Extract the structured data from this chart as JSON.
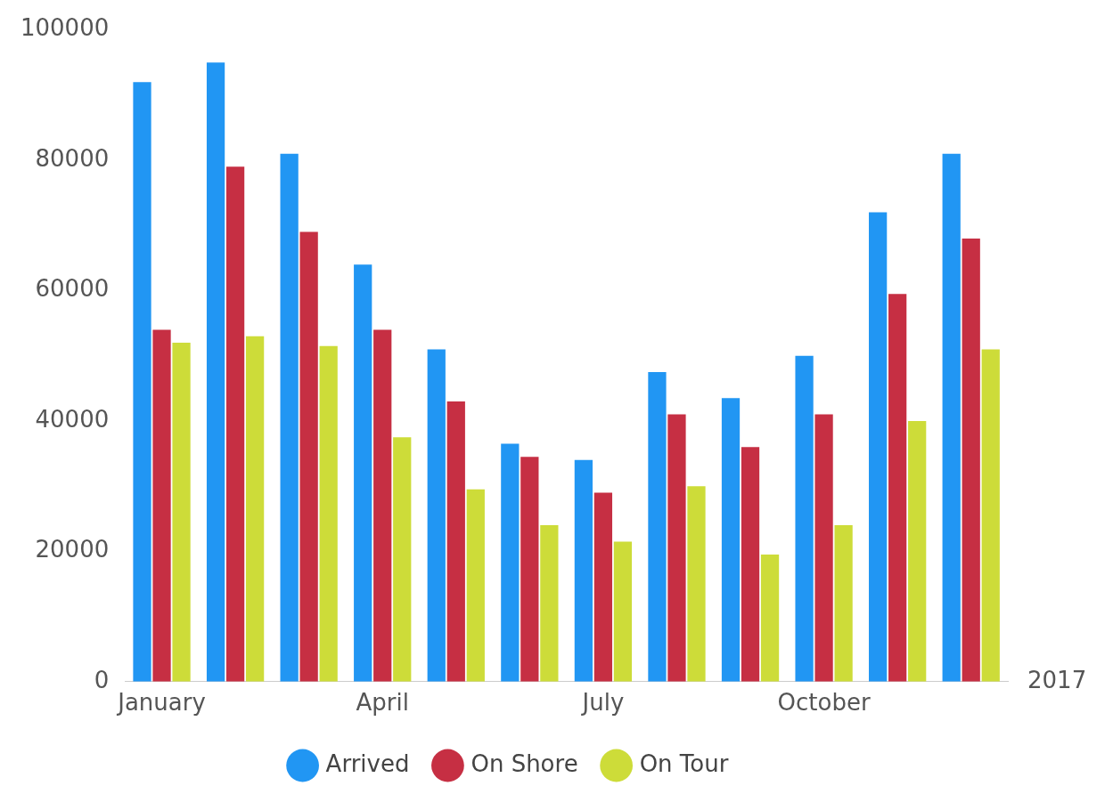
{
  "chart_data": {
    "type": "bar",
    "categories": [
      "January",
      null,
      null,
      "April",
      null,
      null,
      "July",
      null,
      null,
      "October",
      null,
      null
    ],
    "series": [
      {
        "name": "Arrived",
        "color": "#2196f3",
        "values": [
          92000,
          95000,
          81000,
          64000,
          51000,
          36500,
          34000,
          47500,
          43500,
          50000,
          72000,
          81000
        ]
      },
      {
        "name": "On Shore",
        "color": "#c62f43",
        "values": [
          54000,
          79000,
          69000,
          54000,
          43000,
          34500,
          29000,
          41000,
          36000,
          41000,
          59500,
          68000
        ]
      },
      {
        "name": "On Tour",
        "color": "#cddc39",
        "values": [
          52000,
          53000,
          51500,
          37500,
          29500,
          24000,
          21500,
          30000,
          19500,
          24000,
          40000,
          51000
        ]
      }
    ],
    "ylim": [
      0,
      100000
    ],
    "yticks": [
      0,
      20000,
      40000,
      60000,
      80000,
      100000
    ],
    "grid": false,
    "legend": "bottom",
    "marker": "circle",
    "annotations": [
      "2017"
    ]
  }
}
